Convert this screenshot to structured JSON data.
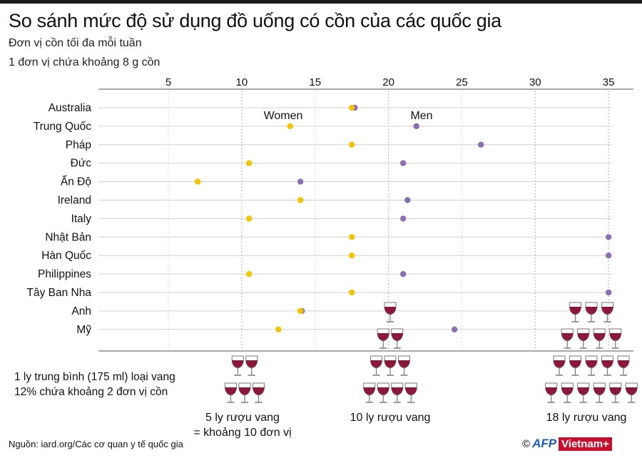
{
  "chart_data": {
    "type": "dot",
    "title": "So sánh mức độ sử dụng đồ uống có cồn của các quốc gia",
    "subtitle": [
      "Đơn vị cồn tối đa mỗi tuần",
      "1 đơn vị chứa khoảng 8 g cồn"
    ],
    "xlim": [
      0,
      36.5
    ],
    "xticks": [
      5,
      10,
      15,
      20,
      25,
      30,
      35
    ],
    "grid": true,
    "categories": [
      "Australia",
      "Trung Quốc",
      "Pháp",
      "Đức",
      "Ấn Độ",
      "Ireland",
      "Italy",
      "Nhật Bản",
      "Hàn Quốc",
      "Philippines",
      "Tây Ban Nha",
      "Anh",
      "Mỹ"
    ],
    "series": [
      {
        "name": "Women",
        "color": "#f5c400",
        "values": [
          17.5,
          13.3,
          17.5,
          10.5,
          7,
          14,
          10.5,
          17.5,
          17.5,
          10.5,
          17.5,
          14,
          12.5
        ]
      },
      {
        "name": "Men",
        "color": "#8a6fb5",
        "values": [
          17.7,
          21.9,
          26.3,
          21,
          14,
          21.3,
          21,
          35,
          35,
          21,
          35,
          14.1,
          24.5
        ]
      }
    ]
  },
  "annotations": {
    "note": "1 ly trung bình (175 ml) loại vang 12% chứa khoảng 2 đơn vị cồn",
    "wine_groups": [
      {
        "glasses": 5,
        "label": "5 ly rượu vang",
        "label2": "= khoảng 10 đơn vị"
      },
      {
        "glasses": 10,
        "label": "10 ly rượu vang"
      },
      {
        "glasses": 18,
        "label": "18 ly rượu vang"
      }
    ],
    "wine_color": "#8b1a3a"
  },
  "footer": {
    "source": "Nguồn: iard.org/Các cơ quan y tế quốc gia",
    "copyright": "©",
    "logo_afp": "AFP",
    "logo_vn": "Vietnam+"
  }
}
